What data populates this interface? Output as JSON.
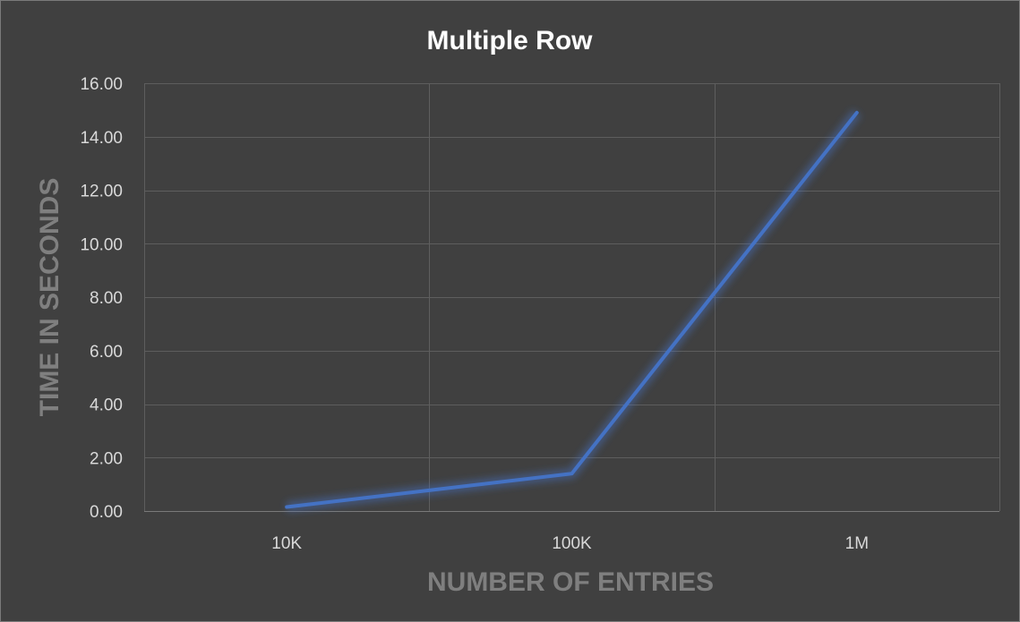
{
  "chart_data": {
    "type": "line",
    "title": "Multiple Row",
    "xlabel": "NUMBER OF ENTRIES",
    "ylabel": "TIME IN SECONDS",
    "categories": [
      "10K",
      "100K",
      "1M"
    ],
    "series": [
      {
        "values": [
          0.15,
          1.4,
          14.9
        ]
      }
    ],
    "ylim": [
      0,
      16
    ],
    "yticks": [
      "0.00",
      "2.00",
      "4.00",
      "6.00",
      "8.00",
      "10.00",
      "12.00",
      "14.00",
      "16.00"
    ],
    "grid": true,
    "legend": "none",
    "colors": {
      "background": "#404040",
      "series": "#4472c4",
      "gridline": "#5e5e5e",
      "axis_title": "#7f7f7f",
      "tick_label": "#d9d9d9",
      "title": "#ffffff"
    }
  }
}
